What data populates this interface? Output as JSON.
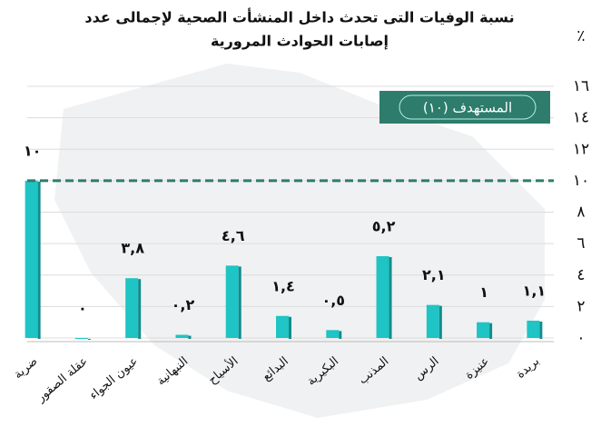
{
  "chart_data": {
    "type": "bar",
    "title": "نسبة الوفيات التى تحدث داخل المنشأت الصحية لإجمالى عدد",
    "subtitle": "إصابات الحوادث المرورية",
    "y_axis_label": "٪",
    "categories": [
      "ضرية",
      "عقلة الصقور",
      "عيون الجواء",
      "النبهانية",
      "الأسياح",
      "البدائع",
      "البكيرية",
      "المذنب",
      "الرس",
      "عنيزة",
      "بريدة"
    ],
    "values": [
      10,
      0,
      3.8,
      0.2,
      4.6,
      1.4,
      0.5,
      5.2,
      2.1,
      1,
      1.1
    ],
    "value_labels": [
      "١٠",
      "٠",
      "٣,٨",
      "٠,٢",
      "٤,٦",
      "١,٤",
      "٠,٥",
      "٥,٢",
      "٢,١",
      "١",
      "١,١"
    ],
    "color": "#1fc4c4",
    "target": {
      "value": 10,
      "label": "المستهدف (١٠)"
    },
    "target_color": "#2d7c6c",
    "ylim": [
      0,
      16
    ],
    "yticks": [
      {
        "value": 0,
        "label": "٠"
      },
      {
        "value": 2,
        "label": "٢"
      },
      {
        "value": 4,
        "label": "٤"
      },
      {
        "value": 6,
        "label": "٦"
      },
      {
        "value": 8,
        "label": "٨"
      },
      {
        "value": 10,
        "label": "١٠"
      },
      {
        "value": 12,
        "label": "١٢"
      },
      {
        "value": 14,
        "label": "١٤"
      },
      {
        "value": 16,
        "label": "١٦"
      }
    ],
    "grid": true
  }
}
